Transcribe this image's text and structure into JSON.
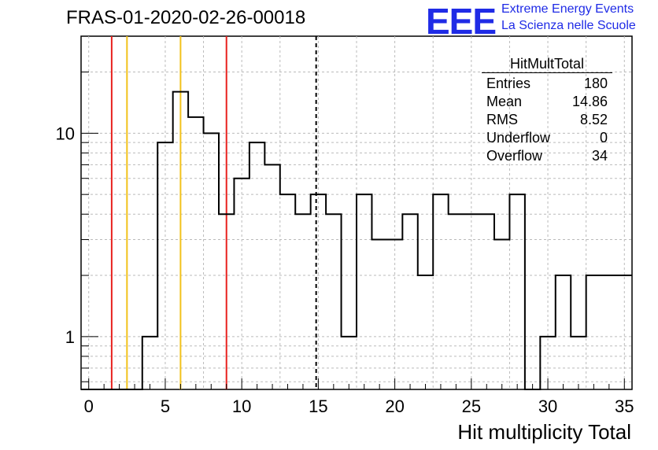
{
  "header": {
    "title": "FRAS-01-2020-02-26-00018",
    "logo_text": "EEE",
    "logo_line1": "Extreme Energy Events",
    "logo_line2": "La Scienza nelle Scuole"
  },
  "stats": {
    "title": "HitMultTotal",
    "rows": [
      {
        "label": "Entries",
        "value": "180"
      },
      {
        "label": "Mean",
        "value": "14.86"
      },
      {
        "label": "RMS",
        "value": "8.52"
      },
      {
        "label": "Underflow",
        "value": "0"
      },
      {
        "label": "Overflow",
        "value": "34"
      }
    ]
  },
  "colors": {
    "red_line": "#e8211e",
    "yellow_line": "#f2c21b",
    "grid": "#bbbbbb",
    "histogram": "#000000"
  },
  "chart_data": {
    "type": "histogram",
    "title": "FRAS-01-2020-02-26-00018",
    "xlabel": "Hit multiplicity Total",
    "ylabel": "",
    "xlim": [
      -0.5,
      35.5
    ],
    "ylim": [
      0.55,
      30
    ],
    "yscale": "log",
    "grid": true,
    "bin_width": 1,
    "bin_edges_start": -0.5,
    "bin_values": [
      0,
      0,
      0,
      0,
      1,
      9,
      16,
      12,
      10,
      4,
      6,
      9,
      7,
      5,
      4,
      5,
      4,
      1,
      5,
      3,
      3,
      4,
      2,
      5,
      4,
      4,
      4,
      3,
      5,
      0,
      1,
      2,
      1,
      2,
      2,
      2
    ],
    "x_ticks": [
      0,
      5,
      10,
      15,
      20,
      25,
      30,
      35
    ],
    "x_tick_labels": [
      "0",
      "5",
      "10",
      "15",
      "20",
      "25",
      "30",
      "35"
    ],
    "y_ticks": [
      1,
      10
    ],
    "y_tick_labels": [
      "1",
      "10"
    ],
    "vertical_lines": [
      {
        "x": 1.5,
        "color": "red",
        "style": "solid"
      },
      {
        "x": 2.5,
        "color": "yellow",
        "style": "solid"
      },
      {
        "x": 6.0,
        "color": "yellow",
        "style": "solid"
      },
      {
        "x": 9.0,
        "color": "red",
        "style": "solid"
      },
      {
        "x": 14.86,
        "color": "black",
        "style": "dashed"
      }
    ]
  }
}
